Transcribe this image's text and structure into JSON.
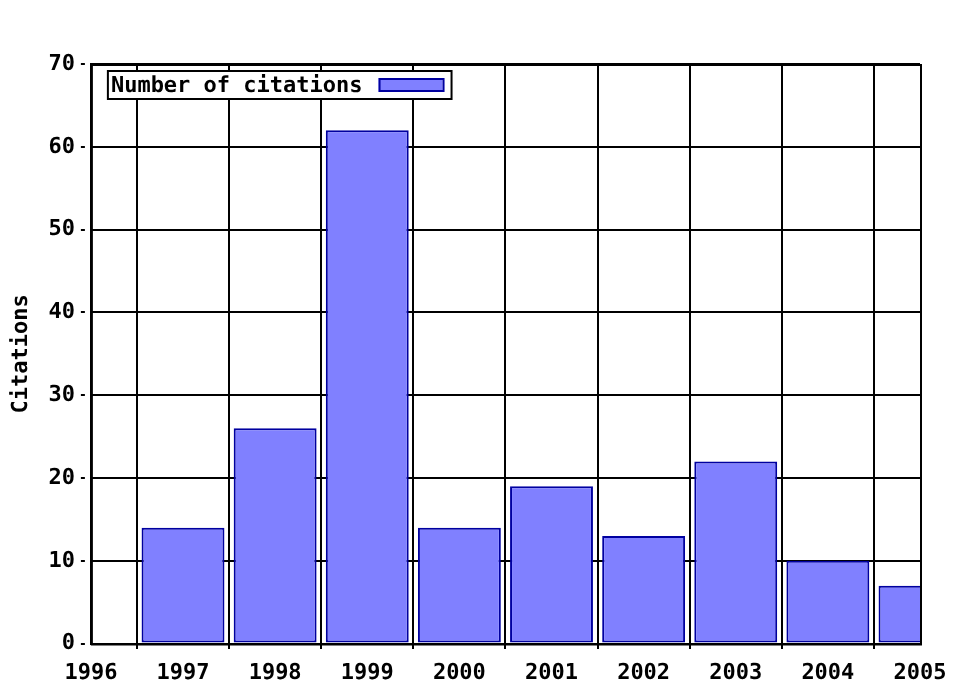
{
  "chart_data": {
    "type": "bar",
    "ylabel": "Citations",
    "x": [
      1997,
      1998,
      1999,
      2000,
      2001,
      2002,
      2003,
      2004,
      2005
    ],
    "series": [
      {
        "name": "Number of citations",
        "color": "#8080ff",
        "values": [
          14,
          26,
          62,
          14,
          19,
          13,
          22,
          10,
          7
        ]
      }
    ],
    "xlim": [
      1996,
      2005
    ],
    "xticks": [
      1996,
      1997,
      1998,
      1999,
      2000,
      2001,
      2002,
      2003,
      2004,
      2005
    ],
    "ylim": [
      0,
      70
    ],
    "yticks": [
      0,
      10,
      20,
      30,
      40,
      50,
      60,
      70
    ],
    "grid": true,
    "legend": "top left"
  }
}
